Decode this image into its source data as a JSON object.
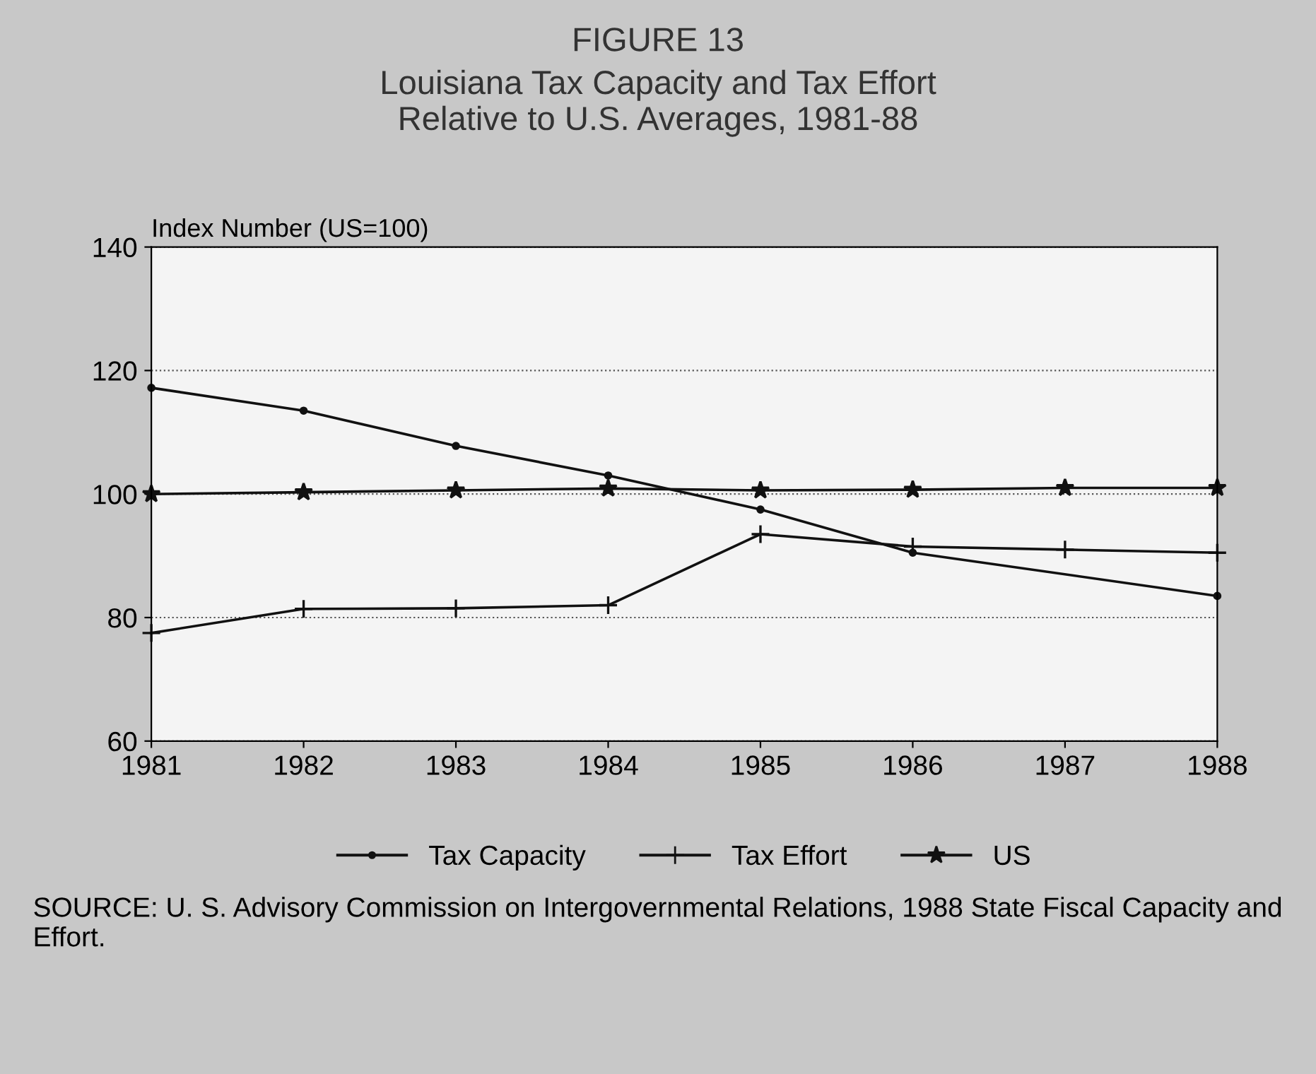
{
  "chart_data": {
    "type": "line",
    "title": "FIGURE 13",
    "subtitle": "Louisiana Tax Capacity and Tax Effort\nRelative to U.S. Averages, 1981-88",
    "ylabel": "Index Number (US=100)",
    "x": [
      1981,
      1982,
      1983,
      1984,
      1985,
      1986,
      1987,
      1988
    ],
    "xlim": [
      1981,
      1988
    ],
    "xticks": [
      1981,
      1982,
      1983,
      1984,
      1985,
      1986,
      1987,
      1988
    ],
    "ylim": [
      60,
      140
    ],
    "yticks": [
      60,
      80,
      100,
      120,
      140
    ],
    "grid": "y",
    "legend": "bottom",
    "series": [
      {
        "name": "Tax Capacity",
        "color": "#111111",
        "marker": "circle",
        "values": [
          117.2,
          113.5,
          107.8,
          103,
          97.5,
          90.5,
          null,
          83.5
        ]
      },
      {
        "name": "Tax Effort",
        "color": "#111111",
        "marker": "cross",
        "values": [
          77.5,
          81.4,
          81.5,
          82,
          93.5,
          91.5,
          91,
          90.5
        ]
      },
      {
        "name": "US",
        "color": "#111111",
        "marker": "star",
        "values": [
          100,
          100.3,
          100.6,
          100.9,
          100.6,
          100.7,
          101,
          101
        ]
      }
    ],
    "annotations": [
      "SOURCE: U. S. Advisory Commission on Intergovernmental Relations, 1988 State Fiscal Capacity and Effort."
    ]
  }
}
